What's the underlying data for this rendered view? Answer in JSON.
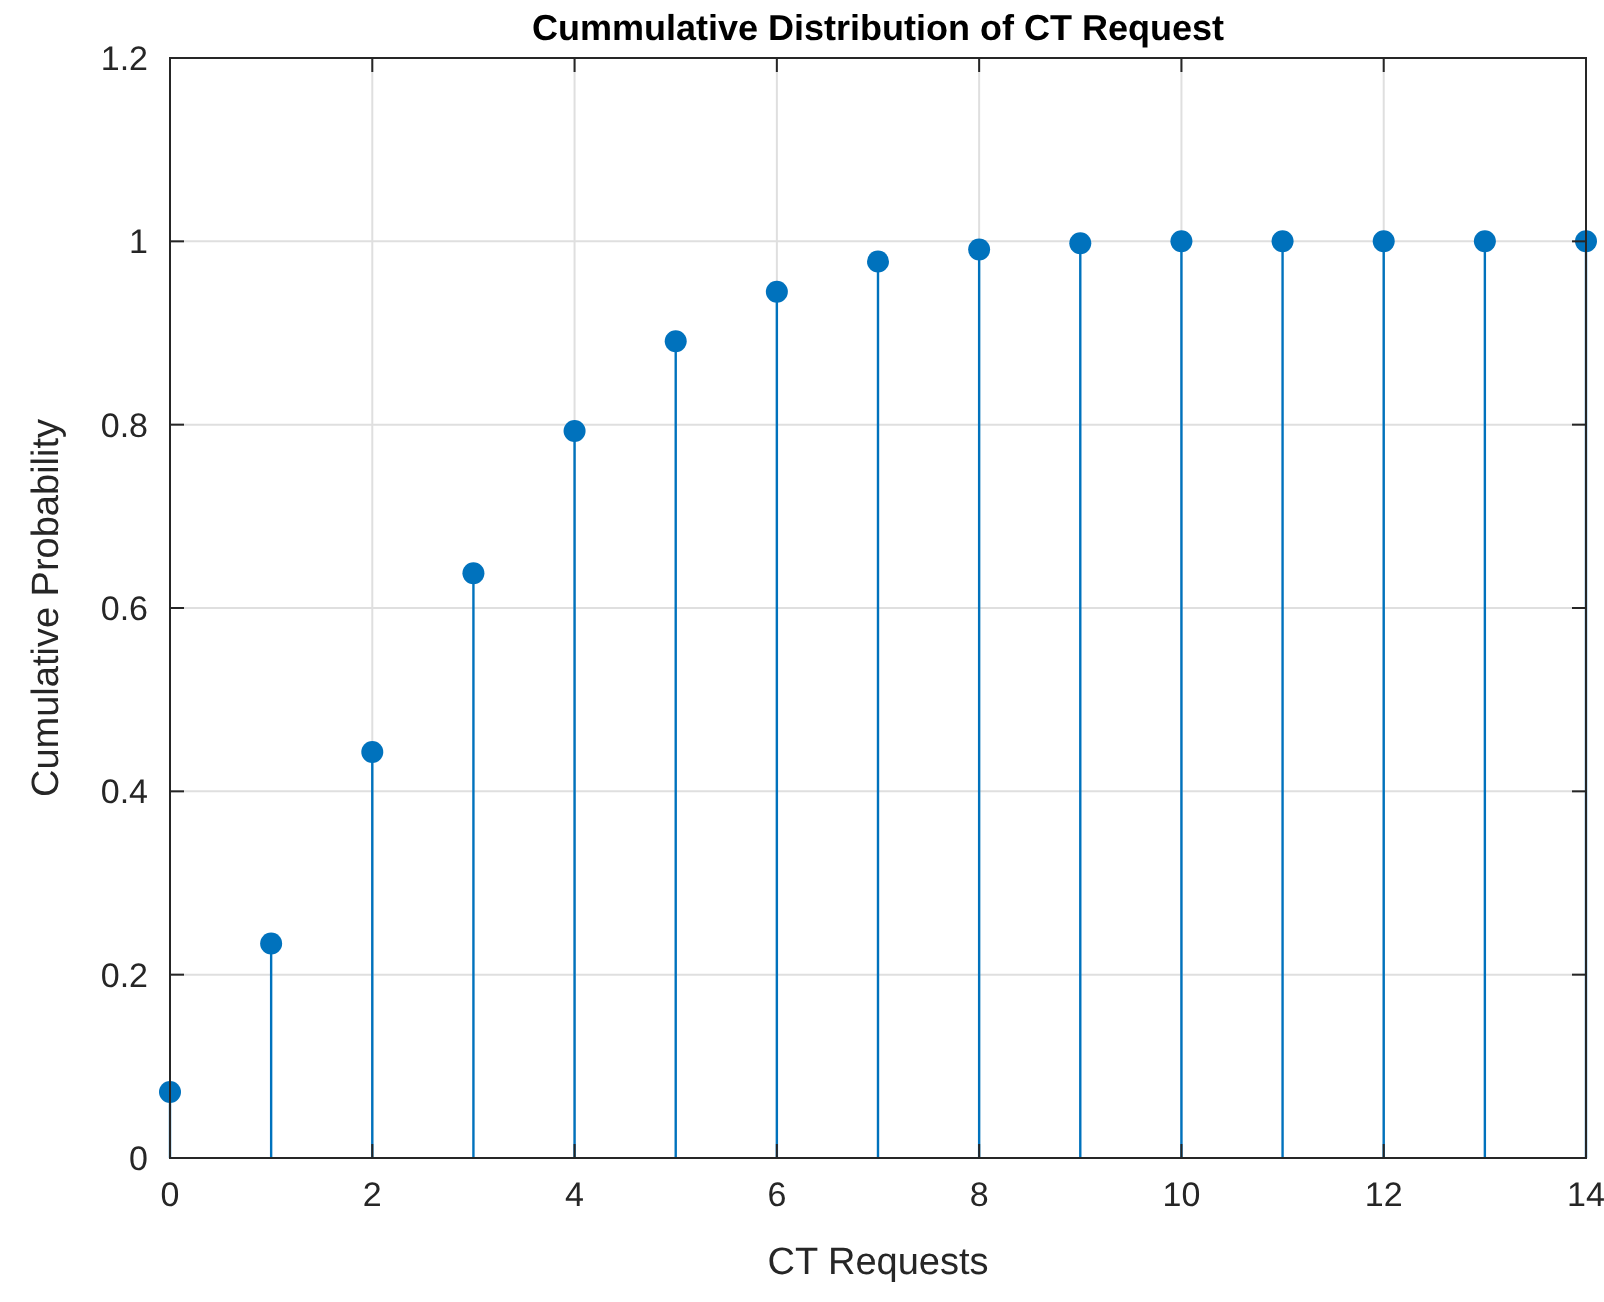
{
  "chart_data": {
    "type": "lollipop",
    "title": "Cummulative Distribution of CT Request",
    "xlabel": "CT Requests",
    "ylabel": "Cumulative Probability",
    "x": [
      0,
      1,
      2,
      3,
      4,
      5,
      6,
      7,
      8,
      9,
      10,
      11,
      12,
      13,
      14
    ],
    "series": [
      {
        "color": "#0072bd",
        "values": [
          0.072,
          0.234,
          0.443,
          0.638,
          0.793,
          0.891,
          0.945,
          0.978,
          0.991,
          0.998,
          1,
          1,
          1,
          1,
          1
        ]
      }
    ],
    "xlim": [
      0,
      14
    ],
    "xticks": [
      0,
      2,
      4,
      6,
      8,
      10,
      12,
      14
    ],
    "ylim": [
      0,
      1.2
    ],
    "yticks": [
      0,
      0.2,
      0.4,
      0.6,
      0.8,
      1,
      1.2
    ],
    "grid": true,
    "marker": "circle"
  }
}
